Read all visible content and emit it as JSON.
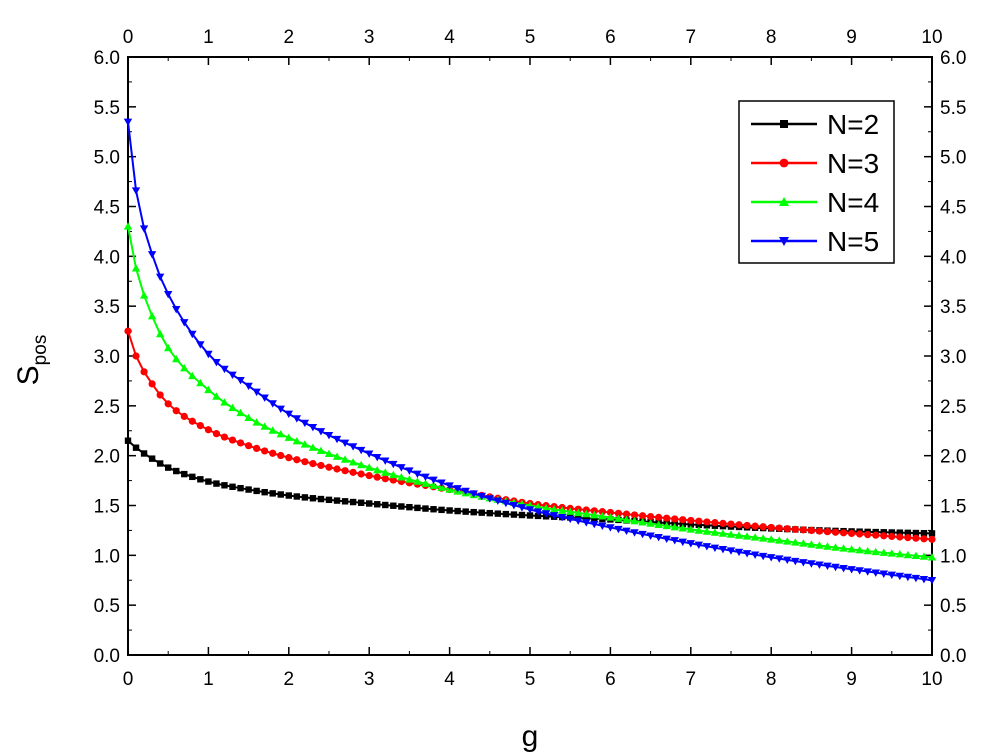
{
  "chart_data": {
    "type": "line",
    "xlabel": "g",
    "ylabel": "S",
    "ylabel_sub": "pos",
    "xlim": [
      0,
      10
    ],
    "ylim": [
      0,
      6
    ],
    "xticks": [
      "0",
      "1",
      "2",
      "3",
      "4",
      "5",
      "6",
      "7",
      "8",
      "9",
      "10"
    ],
    "yticks": [
      "0.0",
      "0.5",
      "1.0",
      "1.5",
      "2.0",
      "2.5",
      "3.0",
      "3.5",
      "4.0",
      "4.5",
      "5.0",
      "5.5",
      "6.0"
    ],
    "legend_position": "top-right",
    "mirror_axes": true,
    "series": [
      {
        "name": "N=2",
        "color": "#000000",
        "marker": "square",
        "x": [
          0,
          0.1,
          0.3,
          0.5,
          1,
          1.5,
          2,
          3,
          4,
          5,
          6,
          7,
          8,
          9,
          10
        ],
        "y": [
          2.15,
          2.08,
          1.97,
          1.88,
          1.74,
          1.66,
          1.6,
          1.52,
          1.45,
          1.4,
          1.36,
          1.31,
          1.27,
          1.24,
          1.22
        ]
      },
      {
        "name": "N=3",
        "color": "#ff0000",
        "marker": "circle",
        "x": [
          0,
          0.1,
          0.3,
          0.5,
          1,
          1.5,
          2,
          3,
          4,
          5,
          6,
          7,
          8,
          9,
          10
        ],
        "y": [
          3.25,
          3.0,
          2.72,
          2.52,
          2.26,
          2.1,
          1.98,
          1.8,
          1.66,
          1.52,
          1.43,
          1.35,
          1.28,
          1.22,
          1.16
        ]
      },
      {
        "name": "N=4",
        "color": "#00ff00",
        "marker": "triangle-up",
        "x": [
          0,
          0.1,
          0.3,
          0.5,
          1,
          1.5,
          2,
          3,
          4,
          5,
          6,
          7,
          8,
          9,
          10
        ],
        "y": [
          4.3,
          3.88,
          3.4,
          3.08,
          2.66,
          2.38,
          2.18,
          1.88,
          1.66,
          1.5,
          1.38,
          1.26,
          1.16,
          1.06,
          0.98
        ]
      },
      {
        "name": "N=5",
        "color": "#0000ff",
        "marker": "triangle-down",
        "x": [
          0,
          0.1,
          0.3,
          0.5,
          1,
          1.5,
          2,
          3,
          4,
          5,
          6,
          7,
          8,
          9,
          10
        ],
        "y": [
          5.35,
          4.66,
          4.02,
          3.62,
          3.02,
          2.7,
          2.42,
          2.02,
          1.7,
          1.46,
          1.28,
          1.12,
          0.98,
          0.86,
          0.75
        ]
      }
    ]
  }
}
